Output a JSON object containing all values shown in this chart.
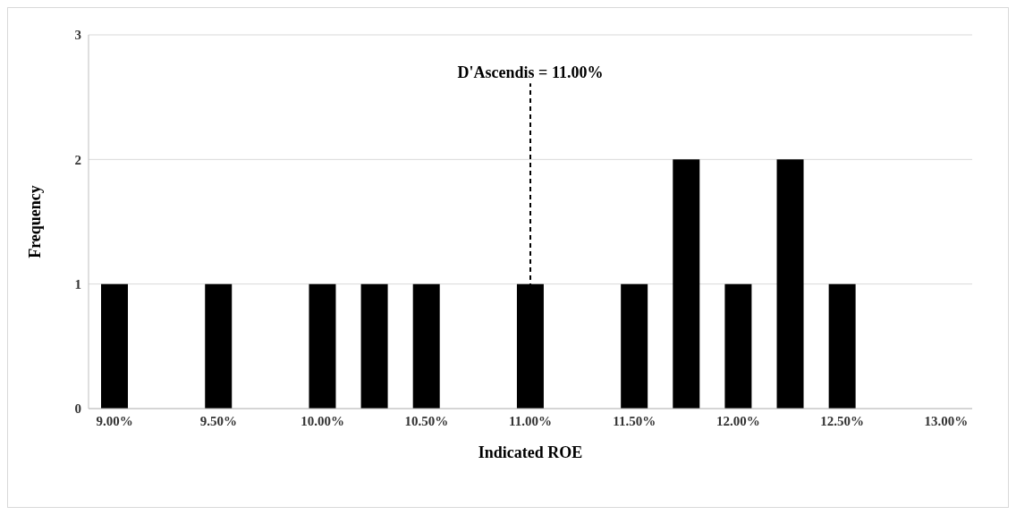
{
  "chart_data": {
    "type": "bar",
    "xlabel": "Indicated ROE",
    "ylabel": "Frequency",
    "x": [
      9.0,
      9.5,
      10.0,
      10.25,
      10.5,
      11.0,
      11.5,
      11.75,
      12.0,
      12.25,
      12.5
    ],
    "values": [
      1,
      1,
      1,
      1,
      1,
      1,
      1,
      2,
      1,
      2,
      1
    ],
    "color": "#000000",
    "xlim": [
      8.875,
      13.125
    ],
    "xticks": [
      {
        "value": 9,
        "label": "9.00%"
      },
      {
        "value": 9.5,
        "label": "9.50%"
      },
      {
        "value": 10,
        "label": "10.00%"
      },
      {
        "value": 10.5,
        "label": "10.50%"
      },
      {
        "value": 11,
        "label": "11.00%"
      },
      {
        "value": 11.5,
        "label": "11.50%"
      },
      {
        "value": 12,
        "label": "12.00%"
      },
      {
        "value": 12.5,
        "label": "12.50%"
      },
      {
        "value": 13,
        "label": "13.00%"
      }
    ],
    "ylim": [
      0,
      3
    ],
    "yticks": [
      0,
      1,
      2,
      3
    ],
    "grid": "y",
    "legend": false,
    "ref_lines": [
      {
        "axis": "x",
        "value": 11,
        "label": "D'Ascendis = 11.00%",
        "color": "#000000",
        "line_style": "dashed"
      }
    ]
  }
}
